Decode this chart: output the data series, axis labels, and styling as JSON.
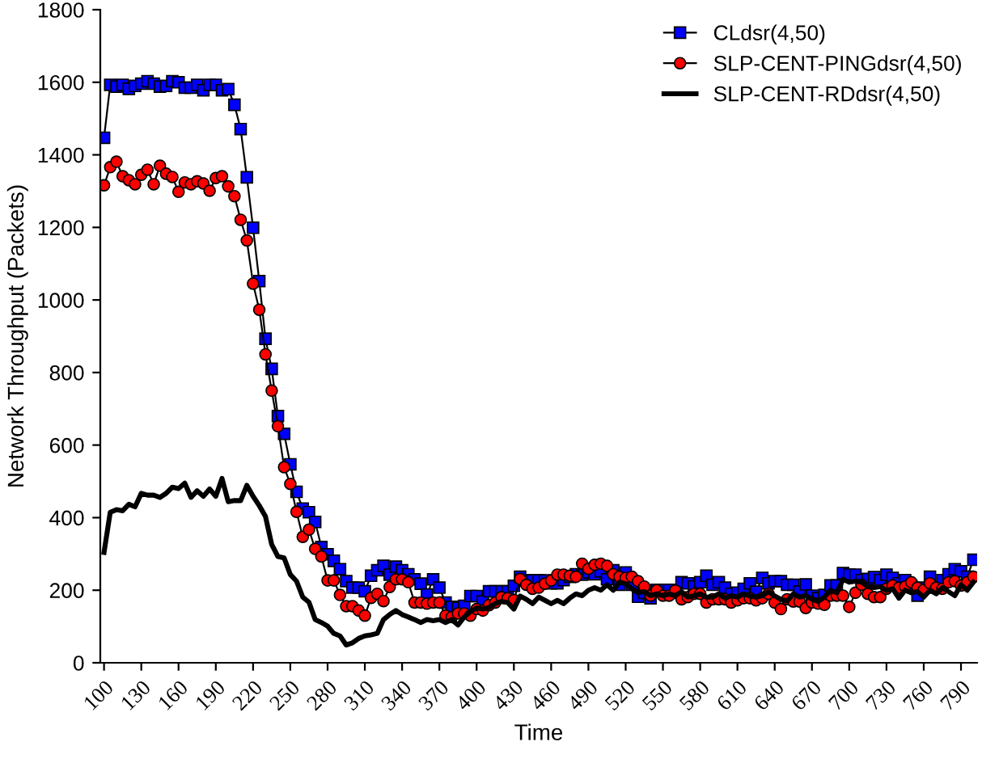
{
  "chart_data": {
    "type": "line",
    "xlabel": "Time",
    "ylabel": "Network Throughput (Packets)",
    "xlim": [
      97,
      803
    ],
    "ylim": [
      0,
      1800
    ],
    "xticks": [
      100,
      130,
      160,
      190,
      220,
      250,
      280,
      310,
      340,
      370,
      400,
      430,
      460,
      490,
      520,
      550,
      580,
      610,
      640,
      670,
      700,
      730,
      760,
      790
    ],
    "yticks": [
      0,
      200,
      400,
      600,
      800,
      1000,
      1200,
      1400,
      1600,
      1800
    ],
    "grid": false,
    "legend": "top right",
    "x": [
      100,
      105,
      110,
      115,
      120,
      125,
      130,
      135,
      140,
      145,
      150,
      155,
      160,
      165,
      170,
      175,
      180,
      185,
      190,
      195,
      200,
      205,
      210,
      215,
      220,
      225,
      230,
      235,
      240,
      245,
      250,
      255,
      260,
      265,
      270,
      275,
      280,
      285,
      290,
      295,
      300,
      305,
      310,
      315,
      320,
      325,
      330,
      335,
      340,
      345,
      350,
      355,
      360,
      365,
      370,
      375,
      380,
      385,
      390,
      395,
      400,
      405,
      410,
      415,
      420,
      425,
      430,
      435,
      440,
      445,
      450,
      455,
      460,
      465,
      470,
      475,
      480,
      485,
      490,
      495,
      500,
      505,
      510,
      515,
      520,
      525,
      530,
      535,
      540,
      545,
      550,
      555,
      560,
      565,
      570,
      575,
      580,
      585,
      590,
      595,
      600,
      605,
      610,
      615,
      620,
      625,
      630,
      635,
      640,
      645,
      650,
      655,
      660,
      665,
      670,
      675,
      680,
      685,
      690,
      695,
      700,
      705,
      710,
      715,
      720,
      725,
      730,
      735,
      740,
      745,
      750,
      755,
      760,
      765,
      770,
      775,
      780,
      785,
      790,
      795,
      800
    ],
    "series": [
      {
        "name": "CLdsr(4,50)",
        "color": "#0000ff",
        "marker": "square",
        "values": [
          1447,
          1593,
          1588,
          1593,
          1582,
          1590,
          1596,
          1603,
          1596,
          1588,
          1590,
          1603,
          1600,
          1585,
          1585,
          1593,
          1578,
          1593,
          1593,
          1578,
          1581,
          1538,
          1471,
          1338,
          1199,
          1052,
          893,
          810,
          680,
          631,
          547,
          471,
          425,
          415,
          388,
          319,
          299,
          281,
          258,
          225,
          207,
          207,
          197,
          240,
          255,
          267,
          243,
          265,
          255,
          244,
          230,
          218,
          188,
          230,
          207,
          166,
          154,
          151,
          157,
          184,
          184,
          169,
          197,
          197,
          197,
          197,
          212,
          237,
          227,
          227,
          227,
          227,
          219,
          219,
          228,
          237,
          244,
          243,
          249,
          244,
          252,
          230,
          255,
          215,
          249,
          215,
          182,
          193,
          178,
          201,
          201,
          201,
          193,
          222,
          219,
          210,
          222,
          240,
          215,
          222,
          207,
          190,
          193,
          204,
          219,
          196,
          234,
          219,
          225,
          225,
          215,
          215,
          196,
          216,
          185,
          178,
          187,
          213,
          213,
          247,
          243,
          243,
          228,
          231,
          236,
          228,
          243,
          234,
          219,
          228,
          212,
          185,
          207,
          237,
          207,
          228,
          244,
          258,
          252,
          237,
          284
        ]
      },
      {
        "name": "SLP-CENT-PINGdsr(4,50)",
        "color": "#ff0000",
        "marker": "circle",
        "values": [
          1316,
          1366,
          1381,
          1341,
          1330,
          1319,
          1345,
          1359,
          1319,
          1370,
          1348,
          1339,
          1298,
          1324,
          1319,
          1327,
          1321,
          1301,
          1336,
          1341,
          1313,
          1286,
          1221,
          1164,
          1045,
          973,
          850,
          750,
          652,
          539,
          493,
          416,
          347,
          367,
          314,
          293,
          227,
          227,
          187,
          156,
          156,
          144,
          130,
          179,
          190,
          170,
          209,
          230,
          230,
          222,
          166,
          166,
          163,
          166,
          166,
          130,
          126,
          136,
          136,
          130,
          148,
          144,
          159,
          166,
          181,
          178,
          173,
          231,
          215,
          204,
          207,
          218,
          227,
          243,
          243,
          240,
          237,
          273,
          259,
          270,
          273,
          267,
          244,
          237,
          234,
          237,
          225,
          210,
          185,
          200,
          185,
          185,
          199,
          175,
          181,
          190,
          190,
          166,
          175,
          175,
          175,
          166,
          172,
          178,
          178,
          172,
          178,
          190,
          166,
          148,
          175,
          169,
          169,
          151,
          166,
          163,
          160,
          185,
          185,
          185,
          154,
          193,
          215,
          190,
          181,
          181,
          204,
          213,
          207,
          210,
          222,
          207,
          201,
          219,
          207,
          204,
          222,
          225,
          213,
          222,
          237
        ]
      },
      {
        "name": "SLP-CENT-RDdsr(4,50)",
        "color": "#000000",
        "marker": "none",
        "values": [
          304,
          415,
          422,
          419,
          437,
          430,
          467,
          462,
          462,
          456,
          467,
          484,
          480,
          495,
          456,
          474,
          459,
          479,
          459,
          508,
          444,
          447,
          447,
          489,
          459,
          433,
          403,
          326,
          293,
          289,
          243,
          225,
          181,
          167,
          119,
          111,
          101,
          81,
          74,
          49,
          55,
          67,
          74,
          77,
          81,
          119,
          133,
          144,
          133,
          126,
          119,
          111,
          119,
          116,
          119,
          111,
          119,
          104,
          126,
          141,
          151,
          148,
          153,
          163,
          169,
          166,
          148,
          184,
          175,
          163,
          181,
          172,
          163,
          172,
          163,
          178,
          190,
          185,
          200,
          207,
          200,
          215,
          200,
          222,
          218,
          204,
          193,
          196,
          185,
          190,
          185,
          190,
          185,
          196,
          181,
          185,
          190,
          181,
          181,
          190,
          178,
          185,
          181,
          190,
          184,
          181,
          185,
          196,
          184,
          175,
          170,
          190,
          181,
          185,
          175,
          169,
          181,
          200,
          193,
          230,
          222,
          225,
          222,
          210,
          207,
          210,
          199,
          204,
          178,
          200,
          193,
          196,
          181,
          200,
          190,
          207,
          196,
          185,
          215,
          200,
          222
        ]
      }
    ]
  }
}
